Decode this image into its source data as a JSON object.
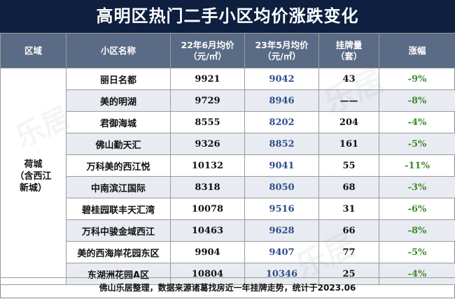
{
  "title": "高明区热门二手小区均价涨跌变化",
  "header": {
    "region": "区域",
    "name": "小区名称",
    "jun_line1": "22年6月均价",
    "jun_line2": "（元/㎡）",
    "may_line1": "23年5月均价",
    "may_line2": "（元/㎡）",
    "listings_line1": "挂牌量",
    "listings_line2": "（套）",
    "change": "涨幅"
  },
  "region": {
    "line1": "荷城",
    "line2": "（含西江",
    "line3": "新城）"
  },
  "rows": [
    {
      "name": "丽日名都",
      "jun": "9921",
      "may": "9042",
      "listings": "43",
      "change": "-9%"
    },
    {
      "name": "美的明湖",
      "jun": "9729",
      "may": "8946",
      "listings": "——",
      "change": "-8%"
    },
    {
      "name": "君御海城",
      "jun": "8555",
      "may": "8202",
      "listings": "204",
      "change": "-4%"
    },
    {
      "name": "佛山勤天汇",
      "jun": "9326",
      "may": "8852",
      "listings": "161",
      "change": "-5%"
    },
    {
      "name": "万科美的西江悦",
      "jun": "10132",
      "may": "9041",
      "listings": "55",
      "change": "-11%"
    },
    {
      "name": "中南滨江国际",
      "jun": "8318",
      "may": "8050",
      "listings": "68",
      "change": "-3%"
    },
    {
      "name": "碧桂园联丰天汇湾",
      "jun": "10078",
      "may": "9516",
      "listings": "31",
      "change": "-6%"
    },
    {
      "name": "万科中骏金域西江",
      "jun": "10463",
      "may": "9628",
      "listings": "66",
      "change": "-8%"
    },
    {
      "name": "美的西海岸花园东区",
      "jun": "9904",
      "may": "9407",
      "listings": "77",
      "change": "-5%"
    },
    {
      "name": "东湖洲花园A区",
      "jun": "10804",
      "may": "10346",
      "listings": "25",
      "change": "-4%"
    }
  ],
  "footer": "佛山乐居整理，数据来源诸葛找房近一年挂牌走势，统计于2023.06",
  "watermark": "乐居"
}
